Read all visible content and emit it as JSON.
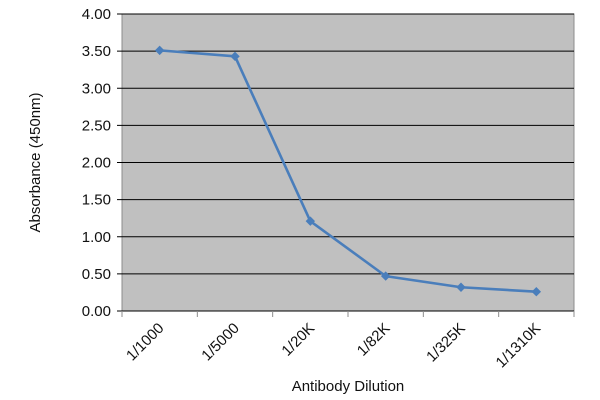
{
  "chart_data": {
    "type": "line",
    "title": "",
    "xlabel": "Antibody Dilution",
    "ylabel": "Absorbance (450nm)",
    "categories": [
      "1/1000",
      "1/5000",
      "1/20K",
      "1/82K",
      "1/325K",
      "1/1310K"
    ],
    "series": [
      {
        "values": [
          3.51,
          3.43,
          1.21,
          0.47,
          0.32,
          0.26
        ],
        "color": "#4a7ebb"
      }
    ],
    "ylim": [
      0,
      4
    ],
    "yticks": [
      "0.00",
      "0.50",
      "1.00",
      "1.50",
      "2.00",
      "2.50",
      "3.00",
      "3.50",
      "4.00"
    ],
    "grid": true,
    "plot_background": "#c0c0c0",
    "gridline_color": "#000000",
    "legend": "none"
  }
}
